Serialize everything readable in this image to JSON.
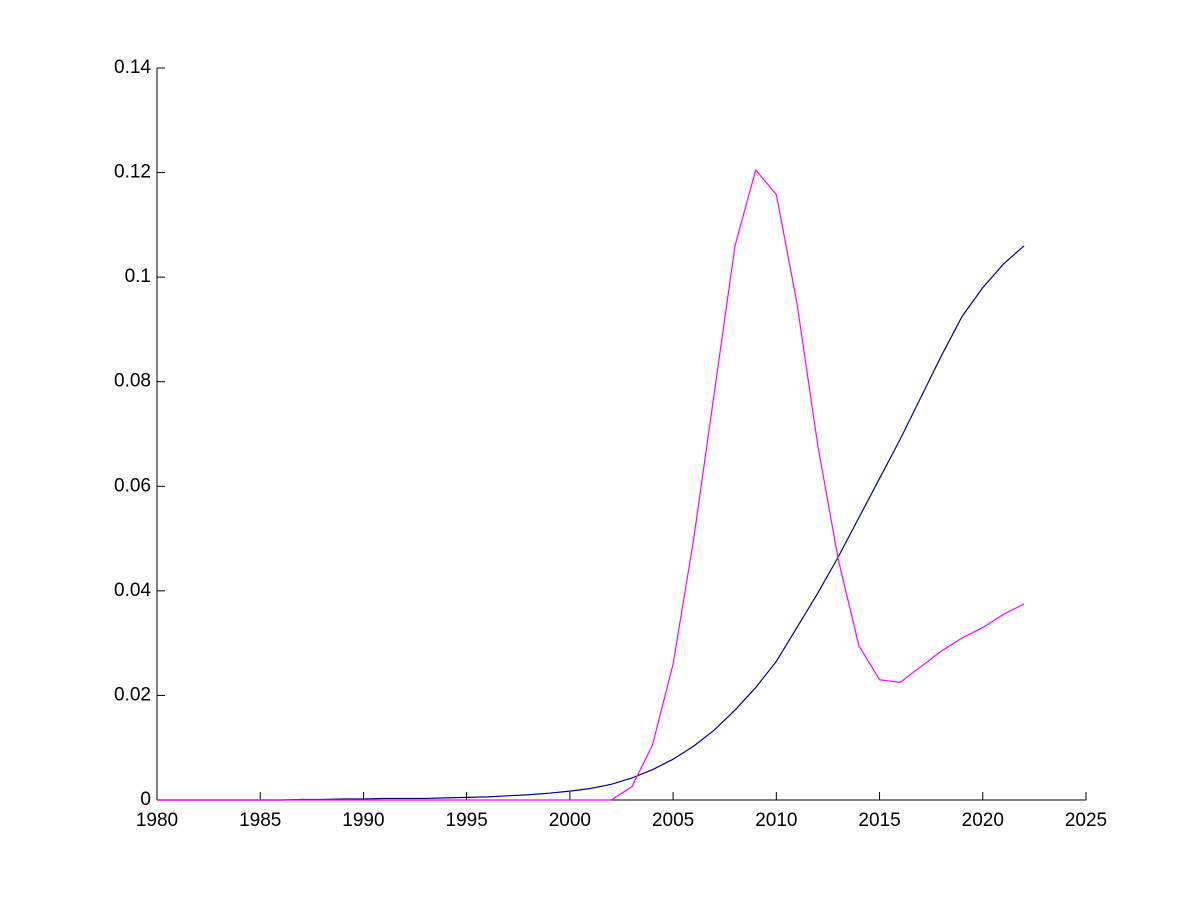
{
  "chart_data": {
    "type": "line",
    "x": [
      1980,
      1981,
      1982,
      1983,
      1984,
      1985,
      1986,
      1987,
      1988,
      1989,
      1990,
      1991,
      1992,
      1993,
      1994,
      1995,
      1996,
      1997,
      1998,
      1999,
      2000,
      2001,
      2002,
      2003,
      2004,
      2005,
      2006,
      2007,
      2008,
      2009,
      2010,
      2011,
      2012,
      2013,
      2014,
      2015,
      2016,
      2017,
      2018,
      2019,
      2020,
      2021,
      2022
    ],
    "series": [
      {
        "color": "#00008b",
        "values": [
          0,
          0,
          0,
          0,
          0,
          0,
          0,
          0.0001,
          0.0001,
          0.0002,
          0.0002,
          0.0003,
          0.0003,
          0.0003,
          0.0004,
          0.0005,
          0.0006,
          0.0008,
          0.001,
          0.0013,
          0.0017,
          0.0022,
          0.003,
          0.0042,
          0.0058,
          0.0078,
          0.0103,
          0.0134,
          0.0172,
          0.0215,
          0.0265,
          0.033,
          0.0395,
          0.0465,
          0.054,
          0.0615,
          0.069,
          0.077,
          0.085,
          0.0925,
          0.098,
          0.1025,
          0.106
        ]
      },
      {
        "color": "#ff00ff",
        "values": [
          0,
          0,
          0,
          0,
          0,
          0,
          0,
          0,
          0,
          0,
          0,
          0,
          0,
          0,
          0,
          0,
          0,
          0,
          0,
          0,
          0,
          0,
          0,
          0.0025,
          0.0105,
          0.026,
          0.05,
          0.078,
          0.106,
          0.1205,
          0.1158,
          0.095,
          0.068,
          0.046,
          0.0295,
          0.023,
          0.0225,
          0.0255,
          0.0285,
          0.031,
          0.033,
          0.0355,
          0.0375
        ]
      }
    ],
    "xlim": [
      1980,
      2025
    ],
    "xticks": [
      1980,
      1985,
      1990,
      1995,
      2000,
      2005,
      2010,
      2015,
      2020,
      2025
    ],
    "ylim": [
      0,
      0.14
    ],
    "yticks": [
      0,
      0.02,
      0.04,
      0.06,
      0.08,
      0.1,
      0.12,
      0.14
    ]
  }
}
